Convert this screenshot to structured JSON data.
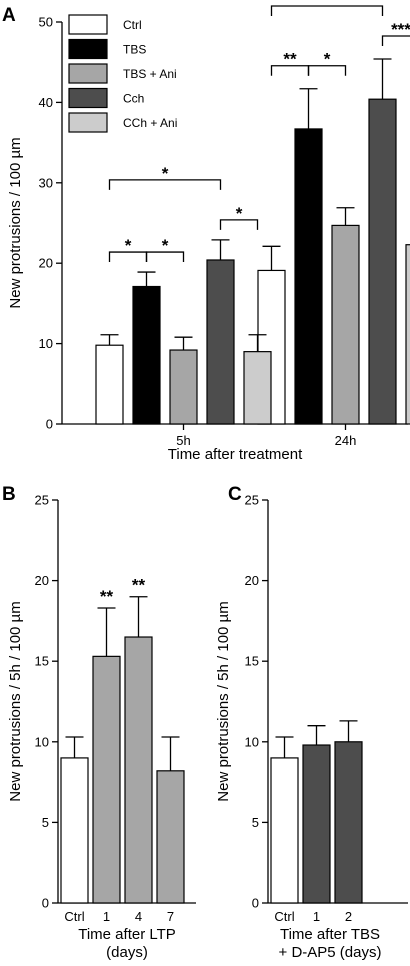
{
  "colors": {
    "Ctrl": "#ffffff",
    "TBS": "#000000",
    "TBS + Ani": "#a6a6a6",
    "Cch": "#4d4d4d",
    "CCh + Ani": "#cccccc",
    "gray_bar": "#a6a6a6",
    "dark_bar": "#4d4d4d"
  },
  "chart_data": [
    {
      "panel": "A",
      "type": "bar",
      "ylabel": "New protrusions / 100 µm",
      "xlabel": "Time after treatment",
      "ylim": [
        0,
        50
      ],
      "yticks": [
        0,
        10,
        20,
        30,
        40,
        50
      ],
      "categories": [
        "5h",
        "24h"
      ],
      "legend": [
        "Ctrl",
        "TBS",
        "TBS + Ani",
        "Cch",
        "CCh + Ani"
      ],
      "legend_position": "top-left",
      "series": [
        {
          "name": "Ctrl",
          "values": [
            9.8,
            19.1
          ],
          "errors": [
            1.3,
            3.0
          ]
        },
        {
          "name": "TBS",
          "values": [
            17.1,
            36.7
          ],
          "errors": [
            1.8,
            5.0
          ]
        },
        {
          "name": "TBS + Ani",
          "values": [
            9.2,
            24.7
          ],
          "errors": [
            1.6,
            2.2
          ]
        },
        {
          "name": "Cch",
          "values": [
            20.4,
            40.4
          ],
          "errors": [
            2.5,
            5.0
          ]
        },
        {
          "name": "CCh + Ani",
          "values": [
            9.0,
            22.3
          ],
          "errors": [
            2.1,
            3.1
          ]
        }
      ],
      "significance": [
        {
          "group": 0,
          "from": 0,
          "to": 1,
          "label": "*"
        },
        {
          "group": 0,
          "from": 1,
          "to": 2,
          "label": "*"
        },
        {
          "group": 0,
          "from": 0,
          "to": 3,
          "label": "*"
        },
        {
          "group": 0,
          "from": 3,
          "to": 4,
          "label": "*"
        },
        {
          "group": 1,
          "from": 0,
          "to": 1,
          "label": "**"
        },
        {
          "group": 1,
          "from": 1,
          "to": 2,
          "label": "*"
        },
        {
          "group": 1,
          "from": 0,
          "to": 3,
          "label": "***"
        },
        {
          "group": 1,
          "from": 3,
          "to": 4,
          "label": "***"
        }
      ]
    },
    {
      "panel": "B",
      "type": "bar",
      "ylabel": "New protrusions / 5h / 100 µm",
      "xlabel": [
        "Time after LTP",
        "(days)"
      ],
      "ylim": [
        0,
        25
      ],
      "yticks": [
        0,
        5,
        10,
        15,
        20,
        25
      ],
      "categories": [
        "Ctrl",
        "1",
        "4",
        "7"
      ],
      "values": [
        9.0,
        15.3,
        16.5,
        8.2
      ],
      "errors": [
        1.3,
        3.0,
        2.5,
        2.1
      ],
      "bar_colors": [
        "Ctrl",
        "gray_bar",
        "gray_bar",
        "gray_bar"
      ],
      "annotations": [
        "",
        "**",
        "**",
        ""
      ]
    },
    {
      "panel": "C",
      "type": "bar",
      "ylabel": "New protrusions / 5h / 100 µm",
      "xlabel": [
        "Time after TBS",
        "+ D-AP5 (days)"
      ],
      "ylim": [
        0,
        25
      ],
      "yticks": [
        0,
        5,
        10,
        15,
        20,
        25
      ],
      "categories": [
        "Ctrl",
        "1",
        "2"
      ],
      "values": [
        9.0,
        9.8,
        10.0
      ],
      "errors": [
        1.3,
        1.2,
        1.3
      ],
      "bar_colors": [
        "Ctrl",
        "dark_bar",
        "dark_bar"
      ],
      "annotations": [
        "",
        "",
        ""
      ]
    }
  ]
}
